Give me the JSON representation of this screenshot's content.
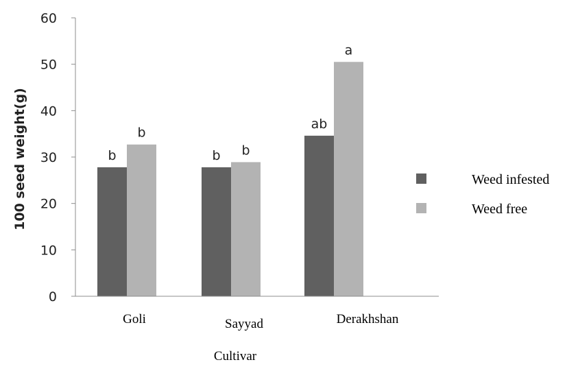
{
  "chart_data": {
    "type": "bar",
    "title": "",
    "xlabel": "Cultivar",
    "ylabel": "100 seed weight(g)",
    "ylim": [
      0,
      60
    ],
    "yticks": [
      0,
      10,
      20,
      30,
      40,
      50,
      60
    ],
    "categories": [
      "Goli",
      "Sayyad",
      "Derakhshan"
    ],
    "series": [
      {
        "name": "Weed infested",
        "color": "#606060",
        "values": [
          27.8,
          27.8,
          34.6
        ],
        "labels": [
          "b",
          "b",
          "ab"
        ]
      },
      {
        "name": "Weed free",
        "color": "#b3b3b3",
        "values": [
          32.7,
          28.9,
          50.5
        ],
        "labels": [
          "b",
          "b",
          "a"
        ]
      }
    ],
    "grid": false,
    "legend": "right"
  }
}
